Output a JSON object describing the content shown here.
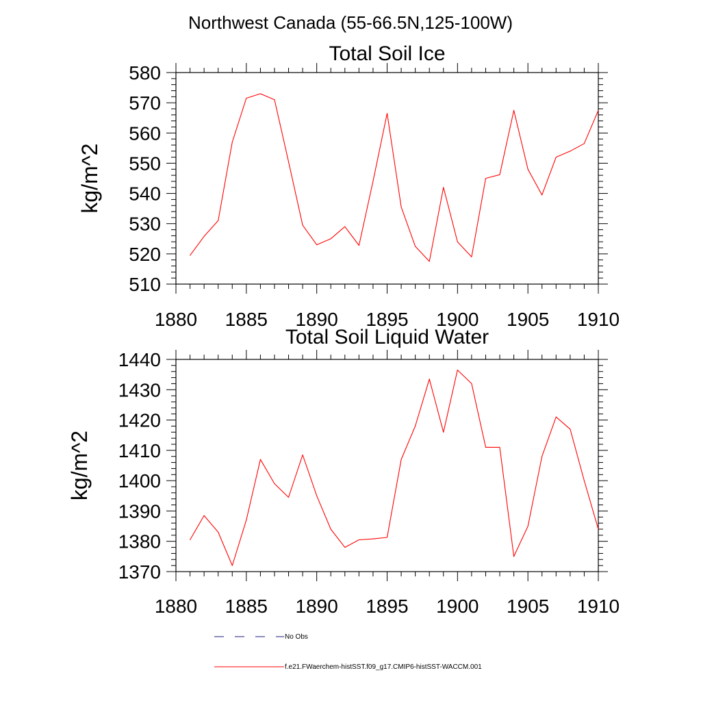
{
  "title": "Northwest Canada (55-66.5N,125-100W)",
  "legend": {
    "items": [
      {
        "label": "No Obs",
        "color": "#1a1a7a",
        "dash": true
      },
      {
        "label": "f.e21.FWaerchem-histSST.f09_g17.CMIP6-histSST-WACCM.001",
        "color": "#ff0000",
        "dash": false
      }
    ]
  },
  "chart_data": [
    {
      "type": "line",
      "title": "Total Soil Ice",
      "xlabel": "",
      "ylabel": "kg/m^2",
      "xlim": [
        1880,
        1910
      ],
      "ylim": [
        510,
        580
      ],
      "xticks": [
        1880,
        1885,
        1890,
        1895,
        1900,
        1905,
        1910
      ],
      "yticks": [
        510,
        520,
        530,
        540,
        550,
        560,
        570,
        580
      ],
      "x_minor_step": 1,
      "y_minor_step": 2,
      "grid": false,
      "series": [
        {
          "color": "#ff0000",
          "x": [
            1881,
            1882,
            1883,
            1884,
            1885,
            1886,
            1887,
            1888,
            1889,
            1890,
            1891,
            1892,
            1893,
            1894,
            1895,
            1896,
            1897,
            1898,
            1899,
            1900,
            1901,
            1902,
            1903,
            1904,
            1905,
            1906,
            1907,
            1908,
            1909,
            1910
          ],
          "y": [
            519.5,
            525.8,
            531.0,
            557.0,
            571.5,
            573.0,
            571.0,
            550.5,
            529.5,
            523.0,
            525.0,
            529.0,
            522.8,
            544.0,
            566.5,
            535.5,
            522.5,
            517.5,
            542.0,
            524.0,
            519.0,
            545.0,
            546.2,
            567.5,
            548.0,
            539.5,
            552.0,
            554.0,
            556.5,
            567.5
          ]
        }
      ]
    },
    {
      "type": "line",
      "title": "Total Soil Liquid Water",
      "xlabel": "",
      "ylabel": "kg/m^2",
      "xlim": [
        1880,
        1910
      ],
      "ylim": [
        1370,
        1440
      ],
      "xticks": [
        1880,
        1885,
        1890,
        1895,
        1900,
        1905,
        1910
      ],
      "yticks": [
        1370,
        1380,
        1390,
        1400,
        1410,
        1420,
        1430,
        1440
      ],
      "x_minor_step": 1,
      "y_minor_step": 2,
      "grid": false,
      "series": [
        {
          "color": "#ff0000",
          "x": [
            1881,
            1882,
            1883,
            1884,
            1885,
            1886,
            1887,
            1888,
            1889,
            1890,
            1891,
            1892,
            1893,
            1894,
            1895,
            1896,
            1897,
            1898,
            1899,
            1900,
            1901,
            1902,
            1903,
            1904,
            1905,
            1906,
            1907,
            1908,
            1909,
            1910
          ],
          "y": [
            1380.5,
            1388.5,
            1383.0,
            1372.0,
            1387.0,
            1407.0,
            1399.0,
            1394.5,
            1408.5,
            1395.0,
            1384.0,
            1378.0,
            1380.5,
            1380.8,
            1381.3,
            1407.0,
            1418.0,
            1433.5,
            1416.0,
            1436.5,
            1432.0,
            1411.0,
            1411.0,
            1375.0,
            1385.0,
            1408.0,
            1421.0,
            1417.0,
            1400.0,
            1384.0
          ]
        }
      ]
    }
  ]
}
